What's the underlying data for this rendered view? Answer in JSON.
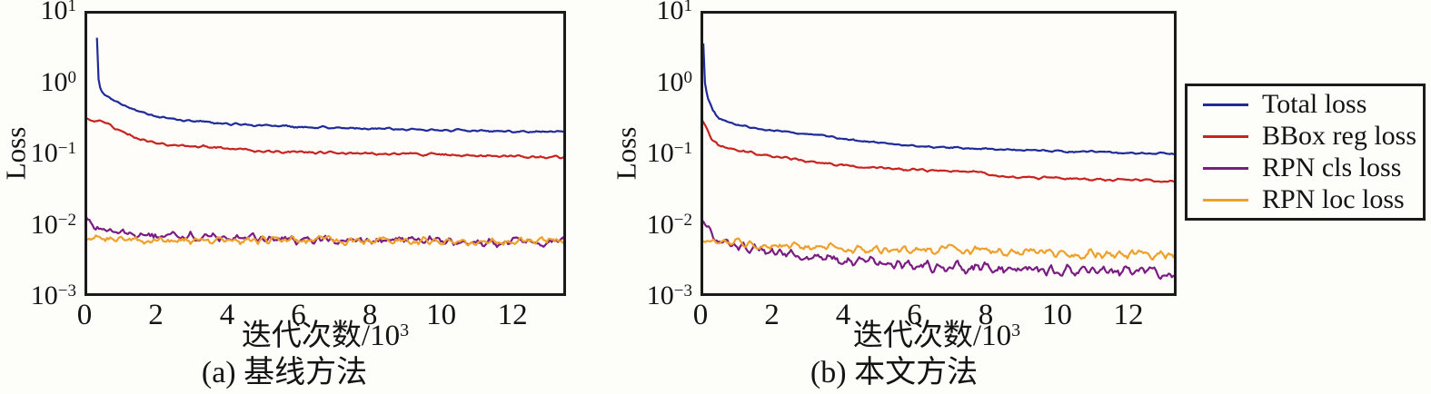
{
  "page": {
    "background": "#fdfdfa"
  },
  "legend": {
    "position": "right",
    "items": [
      {
        "label": "Total loss",
        "color": "#1f2a9b"
      },
      {
        "label": "BBox reg loss",
        "color": "#c8231f"
      },
      {
        "label": "RPN cls loss",
        "color": "#7a1c83"
      },
      {
        "label": "RPN loc loss",
        "color": "#efa02a"
      }
    ]
  },
  "chart_data": [
    {
      "type": "line",
      "title": "(a) 基线方法",
      "xlabel": "迭代次数/10³",
      "xlabel_main": "迭代次数/10",
      "xlabel_sup": "3",
      "ylabel": "Loss",
      "yscale": "log",
      "xlim": [
        0,
        13.5
      ],
      "ylim": [
        0.001,
        10
      ],
      "xticks": [
        0,
        2,
        4,
        6,
        8,
        10,
        12
      ],
      "ytick_exponents": [
        1,
        0,
        -1,
        -2,
        -3
      ],
      "grid": false,
      "series": [
        {
          "name": "Total loss",
          "color": "#1f2a9b",
          "seed": 3,
          "noise_log": 0.013,
          "x": [
            0.35,
            0.38,
            0.45,
            0.6,
            0.8,
            1.0,
            1.5,
            2.0,
            2.5,
            3.0,
            4.0,
            5.0,
            6.0,
            7.0,
            8.0,
            9.0,
            10.0,
            11.0,
            12.0,
            13.5
          ],
          "y": [
            4.2,
            1.2,
            0.78,
            0.65,
            0.56,
            0.5,
            0.39,
            0.33,
            0.3,
            0.285,
            0.262,
            0.247,
            0.237,
            0.229,
            0.223,
            0.218,
            0.213,
            0.208,
            0.204,
            0.198
          ]
        },
        {
          "name": "BBox reg loss",
          "color": "#c8231f",
          "seed": 5,
          "noise_log": 0.016,
          "x": [
            0,
            0.3,
            0.6,
            0.9,
            1.2,
            1.5,
            1.8,
            2.1,
            2.5,
            3.0,
            3.5,
            4.0,
            5.0,
            6.0,
            7.0,
            8.0,
            9.0,
            10.0,
            11.0,
            12.0,
            13.5
          ],
          "y": [
            0.315,
            0.29,
            0.26,
            0.225,
            0.19,
            0.163,
            0.147,
            0.138,
            0.13,
            0.126,
            0.122,
            0.118,
            0.108,
            0.104,
            0.102,
            0.1,
            0.098,
            0.096,
            0.093,
            0.091,
            0.088
          ]
        },
        {
          "name": "RPN cls loss",
          "color": "#7a1c83",
          "seed": 7,
          "noise_log": 0.055,
          "x": [
            0,
            0.2,
            0.4,
            0.7,
            1.0,
            1.5,
            2.0,
            3.0,
            4.0,
            5.0,
            6.0,
            8.0,
            10.0,
            12.0,
            13.5
          ],
          "y": [
            0.0135,
            0.0108,
            0.0092,
            0.0082,
            0.0078,
            0.0073,
            0.007,
            0.0067,
            0.0065,
            0.0064,
            0.0063,
            0.0062,
            0.006,
            0.0058,
            0.0057
          ]
        },
        {
          "name": "RPN loc loss",
          "color": "#efa02a",
          "seed": 9,
          "noise_log": 0.05,
          "x": [
            0,
            1.0,
            2.0,
            3.0,
            4.0,
            5.0,
            6.0,
            8.0,
            10.0,
            12.0,
            13.5
          ],
          "y": [
            0.0061,
            0.0063,
            0.0062,
            0.0061,
            0.0062,
            0.0061,
            0.006,
            0.006,
            0.0059,
            0.0058,
            0.0058
          ]
        }
      ]
    },
    {
      "type": "line",
      "title": "(b) 本文方法",
      "xlabel": "迭代次数/10³",
      "xlabel_main": "迭代次数/10",
      "xlabel_sup": "3",
      "ylabel": "Loss",
      "yscale": "log",
      "xlim": [
        0,
        13.35
      ],
      "ylim": [
        0.001,
        10
      ],
      "xticks": [
        0,
        2,
        4,
        6,
        8,
        10,
        12
      ],
      "ytick_exponents": [
        1,
        0,
        -1,
        -2,
        -3
      ],
      "grid": false,
      "series": [
        {
          "name": "Total loss",
          "color": "#1f2a9b",
          "seed": 11,
          "noise_log": 0.013,
          "x": [
            0.08,
            0.12,
            0.2,
            0.35,
            0.5,
            0.8,
            1.0,
            1.5,
            2.0,
            2.5,
            3.0,
            4.0,
            5.0,
            6.0,
            7.0,
            8.0,
            9.0,
            10.0,
            11.0,
            12.0,
            13.35
          ],
          "y": [
            3.5,
            1.0,
            0.6,
            0.4,
            0.32,
            0.27,
            0.25,
            0.225,
            0.21,
            0.2,
            0.19,
            0.162,
            0.142,
            0.128,
            0.12,
            0.115,
            0.111,
            0.108,
            0.105,
            0.102,
            0.099
          ]
        },
        {
          "name": "BBox reg loss",
          "color": "#c8231f",
          "seed": 13,
          "noise_log": 0.015,
          "x": [
            0,
            0.15,
            0.3,
            0.5,
            0.8,
            1.0,
            1.5,
            2.0,
            2.5,
            3.0,
            4.0,
            5.0,
            6.0,
            7.0,
            7.9,
            8.15,
            9.0,
            10.0,
            11.0,
            12.0,
            13.35
          ],
          "y": [
            0.32,
            0.24,
            0.16,
            0.13,
            0.118,
            0.112,
            0.1,
            0.092,
            0.085,
            0.078,
            0.068,
            0.0625,
            0.059,
            0.057,
            0.055,
            0.048,
            0.046,
            0.0445,
            0.043,
            0.042,
            0.0405
          ]
        },
        {
          "name": "RPN cls loss",
          "color": "#7a1c83",
          "seed": 15,
          "noise_log": 0.07,
          "x": [
            0,
            0.2,
            0.5,
            0.8,
            1.0,
            1.5,
            2.0,
            2.5,
            3.0,
            4.0,
            5.0,
            6.0,
            7.0,
            8.0,
            9.0,
            10.0,
            11.0,
            12.0,
            13.35
          ],
          "y": [
            0.0125,
            0.0085,
            0.0066,
            0.0058,
            0.0053,
            0.0046,
            0.0042,
            0.0039,
            0.0036,
            0.0032,
            0.0029,
            0.0028,
            0.0026,
            0.0025,
            0.0024,
            0.0023,
            0.0023,
            0.0022,
            0.0021
          ]
        },
        {
          "name": "RPN loc loss",
          "color": "#efa02a",
          "seed": 17,
          "noise_log": 0.055,
          "x": [
            0,
            0.5,
            1.0,
            2.0,
            3.0,
            4.0,
            5.0,
            6.0,
            7.0,
            8.0,
            9.0,
            10.0,
            11.0,
            12.0,
            13.35
          ],
          "y": [
            0.006,
            0.0058,
            0.0056,
            0.0052,
            0.0049,
            0.0047,
            0.0046,
            0.0045,
            0.0044,
            0.0042,
            0.0041,
            0.004,
            0.0039,
            0.0038,
            0.0037
          ]
        }
      ]
    }
  ]
}
